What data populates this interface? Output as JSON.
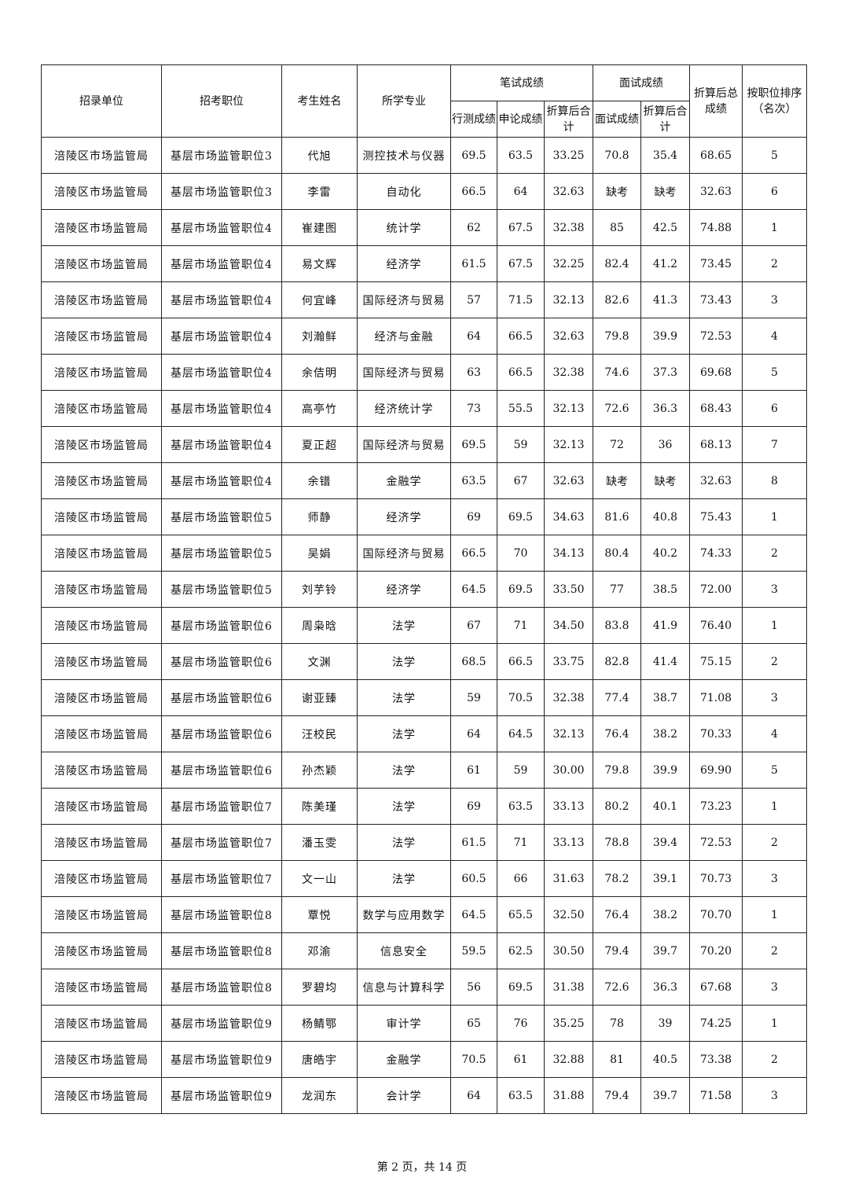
{
  "header": {
    "unit": "招录单位",
    "position": "招考职位",
    "name": "考生姓名",
    "major": "所学专业",
    "written": "笔试成绩",
    "xingce": "行测成绩",
    "shenlun": "申论成绩",
    "written_converted": "折算后合计",
    "interview": "面试成绩",
    "interview_score": "面试成绩",
    "interview_converted": "折算后合计",
    "total": "折算后总成绩",
    "rank": "按职位排序（名次）"
  },
  "rows": [
    [
      "涪陵区市场监管局",
      "基层市场监管职位3",
      "代旭",
      "测控技术与仪器",
      "69.5",
      "63.5",
      "33.25",
      "70.8",
      "35.4",
      "68.65",
      "5"
    ],
    [
      "涪陵区市场监管局",
      "基层市场监管职位3",
      "李雷",
      "自动化",
      "66.5",
      "64",
      "32.63",
      "缺考",
      "缺考",
      "32.63",
      "6"
    ],
    [
      "涪陵区市场监管局",
      "基层市场监管职位4",
      "崔建图",
      "统计学",
      "62",
      "67.5",
      "32.38",
      "85",
      "42.5",
      "74.88",
      "1"
    ],
    [
      "涪陵区市场监管局",
      "基层市场监管职位4",
      "易文辉",
      "经济学",
      "61.5",
      "67.5",
      "32.25",
      "82.4",
      "41.2",
      "73.45",
      "2"
    ],
    [
      "涪陵区市场监管局",
      "基层市场监管职位4",
      "何宜峰",
      "国际经济与贸易",
      "57",
      "71.5",
      "32.13",
      "82.6",
      "41.3",
      "73.43",
      "3"
    ],
    [
      "涪陵区市场监管局",
      "基层市场监管职位4",
      "刘瀚鲜",
      "经济与金融",
      "64",
      "66.5",
      "32.63",
      "79.8",
      "39.9",
      "72.53",
      "4"
    ],
    [
      "涪陵区市场监管局",
      "基层市场监管职位4",
      "余佶明",
      "国际经济与贸易",
      "63",
      "66.5",
      "32.38",
      "74.6",
      "37.3",
      "69.68",
      "5"
    ],
    [
      "涪陵区市场监管局",
      "基层市场监管职位4",
      "高亭竹",
      "经济统计学",
      "73",
      "55.5",
      "32.13",
      "72.6",
      "36.3",
      "68.43",
      "6"
    ],
    [
      "涪陵区市场监管局",
      "基层市场监管职位4",
      "夏正超",
      "国际经济与贸易",
      "69.5",
      "59",
      "32.13",
      "72",
      "36",
      "68.13",
      "7"
    ],
    [
      "涪陵区市场监管局",
      "基层市场监管职位4",
      "余镨",
      "金融学",
      "63.5",
      "67",
      "32.63",
      "缺考",
      "缺考",
      "32.63",
      "8"
    ],
    [
      "涪陵区市场监管局",
      "基层市场监管职位5",
      "师静",
      "经济学",
      "69",
      "69.5",
      "34.63",
      "81.6",
      "40.8",
      "75.43",
      "1"
    ],
    [
      "涪陵区市场监管局",
      "基层市场监管职位5",
      "吴娟",
      "国际经济与贸易",
      "66.5",
      "70",
      "34.13",
      "80.4",
      "40.2",
      "74.33",
      "2"
    ],
    [
      "涪陵区市场监管局",
      "基层市场监管职位5",
      "刘芋铃",
      "经济学",
      "64.5",
      "69.5",
      "33.50",
      "77",
      "38.5",
      "72.00",
      "3"
    ],
    [
      "涪陵区市场监管局",
      "基层市场监管职位6",
      "周枭晗",
      "法学",
      "67",
      "71",
      "34.50",
      "83.8",
      "41.9",
      "76.40",
      "1"
    ],
    [
      "涪陵区市场监管局",
      "基层市场监管职位6",
      "文渊",
      "法学",
      "68.5",
      "66.5",
      "33.75",
      "82.8",
      "41.4",
      "75.15",
      "2"
    ],
    [
      "涪陵区市场监管局",
      "基层市场监管职位6",
      "谢亚臻",
      "法学",
      "59",
      "70.5",
      "32.38",
      "77.4",
      "38.7",
      "71.08",
      "3"
    ],
    [
      "涪陵区市场监管局",
      "基层市场监管职位6",
      "汪校民",
      "法学",
      "64",
      "64.5",
      "32.13",
      "76.4",
      "38.2",
      "70.33",
      "4"
    ],
    [
      "涪陵区市场监管局",
      "基层市场监管职位6",
      "孙杰颖",
      "法学",
      "61",
      "59",
      "30.00",
      "79.8",
      "39.9",
      "69.90",
      "5"
    ],
    [
      "涪陵区市场监管局",
      "基层市场监管职位7",
      "陈美瑾",
      "法学",
      "69",
      "63.5",
      "33.13",
      "80.2",
      "40.1",
      "73.23",
      "1"
    ],
    [
      "涪陵区市场监管局",
      "基层市场监管职位7",
      "潘玉雯",
      "法学",
      "61.5",
      "71",
      "33.13",
      "78.8",
      "39.4",
      "72.53",
      "2"
    ],
    [
      "涪陵区市场监管局",
      "基层市场监管职位7",
      "文一山",
      "法学",
      "60.5",
      "66",
      "31.63",
      "78.2",
      "39.1",
      "70.73",
      "3"
    ],
    [
      "涪陵区市场监管局",
      "基层市场监管职位8",
      "覃悦",
      "数学与应用数学",
      "64.5",
      "65.5",
      "32.50",
      "76.4",
      "38.2",
      "70.70",
      "1"
    ],
    [
      "涪陵区市场监管局",
      "基层市场监管职位8",
      "邓渝",
      "信息安全",
      "59.5",
      "62.5",
      "30.50",
      "79.4",
      "39.7",
      "70.20",
      "2"
    ],
    [
      "涪陵区市场监管局",
      "基层市场监管职位8",
      "罗碧均",
      "信息与计算科学",
      "56",
      "69.5",
      "31.38",
      "72.6",
      "36.3",
      "67.68",
      "3"
    ],
    [
      "涪陵区市场监管局",
      "基层市场监管职位9",
      "杨鲭鄂",
      "审计学",
      "65",
      "76",
      "35.25",
      "78",
      "39",
      "74.25",
      "1"
    ],
    [
      "涪陵区市场监管局",
      "基层市场监管职位9",
      "唐皓宇",
      "金融学",
      "70.5",
      "61",
      "32.88",
      "81",
      "40.5",
      "73.38",
      "2"
    ],
    [
      "涪陵区市场监管局",
      "基层市场监管职位9",
      "龙润东",
      "会计学",
      "64",
      "63.5",
      "31.88",
      "79.4",
      "39.7",
      "71.58",
      "3"
    ]
  ],
  "footer": "第 2 页，共 14 页"
}
